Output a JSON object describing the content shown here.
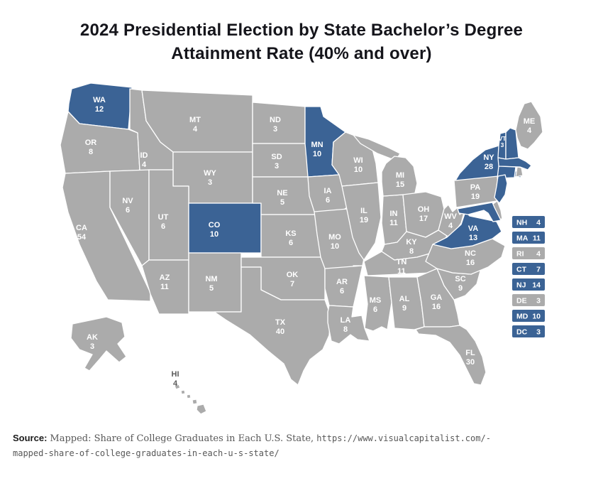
{
  "title": {
    "line1": "2024 Presidential Election by State Bachelor’s Degree",
    "line2": "Attainment Rate (40% and over)"
  },
  "colors": {
    "highlight": "#3B6395",
    "base": "#ABABAB",
    "state_label": "#FFFFFF",
    "hawaii_label": "#5A5A5A"
  },
  "source": {
    "label": "Source:",
    "text": "Mapped: Share of College Graduates in Each U.S. State,",
    "url_line1": "https://www.visualcapitalist.com/-",
    "url_line2": "mapped-share-of-college-graduates-in-each-u-s-state/"
  },
  "chart_data": {
    "type": "heatmap",
    "subtype": "us-state-choropleth",
    "title": "2024 Presidential Election by State Bachelor’s Degree Attainment Rate (40% and over)",
    "highlighted_meaning": "States with bachelor’s degree attainment rate 40% and over (blue); all other states gray; numbers are electoral votes",
    "side_list": [
      "NH",
      "MA",
      "RI",
      "CT",
      "NJ",
      "DE",
      "MD",
      "DC"
    ],
    "states": {
      "WA": {
        "label": "WA",
        "votes": 12,
        "highlighted": true
      },
      "OR": {
        "label": "OR",
        "votes": 8,
        "highlighted": false
      },
      "CA": {
        "label": "CA",
        "votes": 54,
        "highlighted": false
      },
      "ID": {
        "label": "ID",
        "votes": 4,
        "highlighted": false
      },
      "NV": {
        "label": "NV",
        "votes": 6,
        "highlighted": false
      },
      "UT": {
        "label": "UT",
        "votes": 6,
        "highlighted": false
      },
      "AZ": {
        "label": "AZ",
        "votes": 11,
        "highlighted": false
      },
      "MT": {
        "label": "MT",
        "votes": 4,
        "highlighted": false
      },
      "WY": {
        "label": "WY",
        "votes": 3,
        "highlighted": false
      },
      "CO": {
        "label": "CO",
        "votes": 10,
        "highlighted": true
      },
      "NM": {
        "label": "NM",
        "votes": 5,
        "highlighted": false
      },
      "ND": {
        "label": "ND",
        "votes": 3,
        "highlighted": false
      },
      "SD": {
        "label": "SD",
        "votes": 3,
        "highlighted": false
      },
      "NE": {
        "label": "NE",
        "votes": 5,
        "highlighted": false
      },
      "KS": {
        "label": "KS",
        "votes": 6,
        "highlighted": false
      },
      "OK": {
        "label": "OK",
        "votes": 7,
        "highlighted": false
      },
      "TX": {
        "label": "TX",
        "votes": 40,
        "highlighted": false
      },
      "MN": {
        "label": "MN",
        "votes": 10,
        "highlighted": true
      },
      "IA": {
        "label": "IA",
        "votes": 6,
        "highlighted": false
      },
      "MO": {
        "label": "MO",
        "votes": 10,
        "highlighted": false
      },
      "AR": {
        "label": "AR",
        "votes": 6,
        "highlighted": false
      },
      "LA": {
        "label": "LA",
        "votes": 8,
        "highlighted": false
      },
      "WI": {
        "label": "WI",
        "votes": 10,
        "highlighted": false
      },
      "IL": {
        "label": "IL",
        "votes": 19,
        "highlighted": false
      },
      "IN": {
        "label": "IN",
        "votes": 11,
        "highlighted": false
      },
      "MI": {
        "label": "MI",
        "votes": 15,
        "highlighted": false
      },
      "OH": {
        "label": "OH",
        "votes": 17,
        "highlighted": false
      },
      "KY": {
        "label": "KY",
        "votes": 8,
        "highlighted": false
      },
      "TN": {
        "label": "TN",
        "votes": 11,
        "highlighted": false
      },
      "MS": {
        "label": "MS",
        "votes": 6,
        "highlighted": false
      },
      "AL": {
        "label": "AL",
        "votes": 9,
        "highlighted": false
      },
      "GA": {
        "label": "GA",
        "votes": 16,
        "highlighted": false
      },
      "FL": {
        "label": "FL",
        "votes": 30,
        "highlighted": false
      },
      "SC": {
        "label": "SC",
        "votes": 9,
        "highlighted": false
      },
      "NC": {
        "label": "NC",
        "votes": 16,
        "highlighted": false
      },
      "VA": {
        "label": "VA",
        "votes": 13,
        "highlighted": true
      },
      "WV": {
        "label": "WV",
        "votes": 4,
        "highlighted": false
      },
      "PA": {
        "label": "PA",
        "votes": 19,
        "highlighted": false
      },
      "NY": {
        "label": "NY",
        "votes": 28,
        "highlighted": true
      },
      "VT": {
        "label": "VT",
        "votes": 3,
        "highlighted": true
      },
      "NH": {
        "label": "NH",
        "votes": 4,
        "highlighted": true
      },
      "ME": {
        "label": "ME",
        "votes": 4,
        "highlighted": false
      },
      "MA": {
        "label": "MA",
        "votes": 11,
        "highlighted": true
      },
      "RI": {
        "label": "RI",
        "votes": 4,
        "highlighted": false
      },
      "CT": {
        "label": "CT",
        "votes": 7,
        "highlighted": true
      },
      "NJ": {
        "label": "NJ",
        "votes": 14,
        "highlighted": true
      },
      "DE": {
        "label": "DE",
        "votes": 3,
        "highlighted": false
      },
      "MD": {
        "label": "MD",
        "votes": 10,
        "highlighted": true
      },
      "DC": {
        "label": "DC",
        "votes": 3,
        "highlighted": true
      },
      "AK": {
        "label": "AK",
        "votes": 3,
        "highlighted": false
      },
      "HI": {
        "label": "HI",
        "votes": 4,
        "highlighted": false
      }
    }
  }
}
